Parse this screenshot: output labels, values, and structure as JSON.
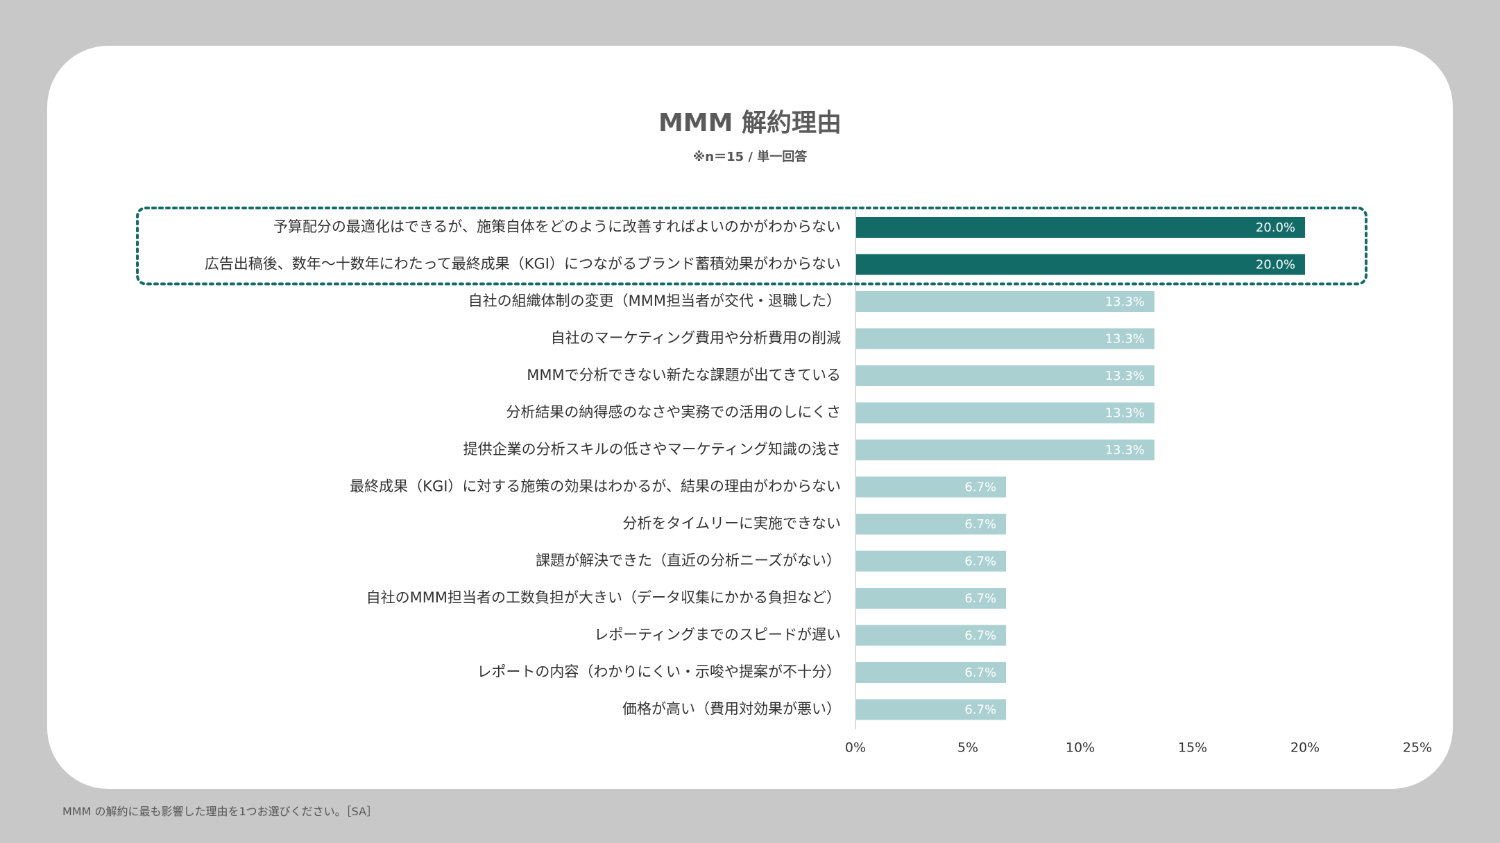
{
  "colors": {
    "background": "#c8c8c8",
    "card": "#ffffff",
    "highlight_bar": "#136b68",
    "normal_bar": "#abd0d2",
    "label_text": "#333333",
    "value_text": "#ffffff",
    "highlight_border": "#136b68"
  },
  "footnote": "MMM の解約に最も影響した理由を1つお選びください。［SA］",
  "chart_data": {
    "type": "bar",
    "orientation": "horizontal",
    "title": "MMM 解約理由",
    "subtitle": "※n＝15 / 単一回答",
    "xlim": [
      0,
      25
    ],
    "xticks": [
      0,
      5,
      10,
      15,
      20,
      25
    ],
    "xtick_labels": [
      "0%",
      "5%",
      "10%",
      "15%",
      "20%",
      "25%"
    ],
    "highlighted_categories": [
      0,
      1
    ],
    "categories": [
      "予算配分の最適化はできるが、施策自体をどのように改善すればよいのかがわからない",
      "広告出稿後、数年～十数年にわたって最終成果（KGI）につながるブランド蓄積効果がわからない",
      "自社の組織体制の変更（MMM担当者が交代・退職した）",
      "自社のマーケティング費用や分析費用の削減",
      "MMMで分析できない新たな課題が出てきている",
      "分析結果の納得感のなさや実務での活用のしにくさ",
      "提供企業の分析スキルの低さやマーケティング知識の浅さ",
      "最終成果（KGI）に対する施策の効果はわかるが、結果の理由がわからない",
      "分析をタイムリーに実施できない",
      "課題が解決できた（直近の分析ニーズがない）",
      "自社のMMM担当者の工数負担が大きい（データ収集にかかる負担など）",
      "レポーティングまでのスピードが遅い",
      "レポートの内容（わかりにくい・示唆や提案が不十分）",
      "価格が高い（費用対効果が悪い）"
    ],
    "values": [
      20.0,
      20.0,
      13.3,
      13.3,
      13.3,
      13.3,
      13.3,
      6.7,
      6.7,
      6.7,
      6.7,
      6.7,
      6.7,
      6.7
    ],
    "value_labels": [
      "20.0%",
      "20.0%",
      "13.3%",
      "13.3%",
      "13.3%",
      "13.3%",
      "13.3%",
      "6.7%",
      "6.7%",
      "6.7%",
      "6.7%",
      "6.7%",
      "6.7%",
      "6.7%"
    ]
  }
}
